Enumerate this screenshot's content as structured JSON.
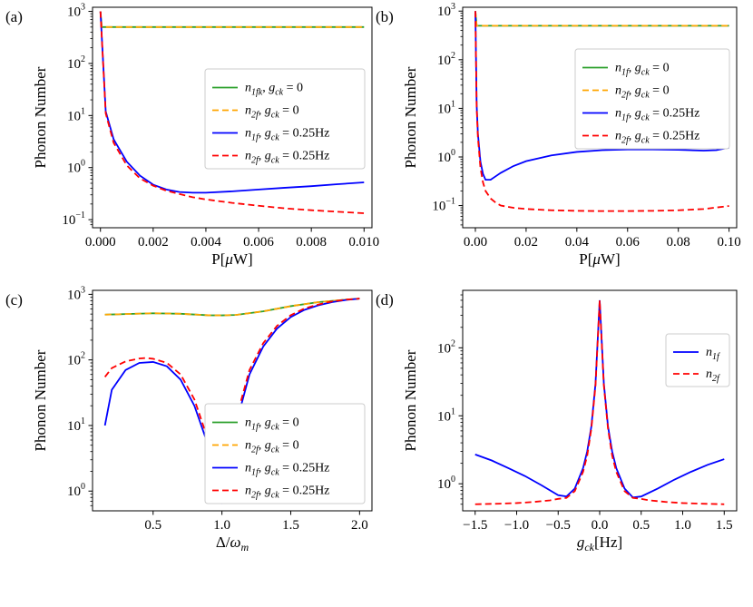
{
  "chart_data": [
    {
      "type": "line",
      "panel_label": "(a)",
      "xlabel": "P[μW]",
      "ylabel": "Phonon Number",
      "xscale": "linear",
      "yscale": "log",
      "xlim": [
        -0.0003,
        0.0103
      ],
      "ylim": [
        0.07,
        1200
      ],
      "xticks": [
        0.0,
        0.002,
        0.004,
        0.006,
        0.008,
        0.01
      ],
      "xtick_labels": [
        "0.000",
        "0.002",
        "0.004",
        "0.006",
        "0.008",
        "0.010"
      ],
      "yticks": [
        0.1,
        1,
        10,
        100,
        1000
      ],
      "ytick_labels": [
        [
          "10",
          "−1"
        ],
        [
          "10",
          "0"
        ],
        [
          "10",
          "1"
        ],
        [
          "10",
          "2"
        ],
        [
          "10",
          "3"
        ]
      ],
      "legend_position": "center-right",
      "series": [
        {
          "label": [
            "n",
            "1fk",
            ", g",
            "ck",
            " = 0"
          ],
          "color": "#2ca02c",
          "dash": "",
          "x": [
            0.0,
            5e-05,
            0.01
          ],
          "y": [
            1000,
            500,
            500
          ]
        },
        {
          "label": [
            "n",
            "2f",
            ", g",
            "ck",
            " = 0"
          ],
          "color": "#ffa500",
          "dash": "7 4",
          "x": [
            0.0,
            5e-05,
            0.01
          ],
          "y": [
            1000,
            500,
            500
          ]
        },
        {
          "label": [
            "n",
            "1f",
            ", g",
            "ck",
            " = 0.25Hz"
          ],
          "color": "#0000ff",
          "dash": "",
          "x": [
            0.0,
            0.0002,
            0.0005,
            0.001,
            0.0015,
            0.002,
            0.0025,
            0.003,
            0.0035,
            0.004,
            0.005,
            0.006,
            0.007,
            0.008,
            0.009,
            0.01
          ],
          "y": [
            1000,
            12,
            3.5,
            1.3,
            0.7,
            0.47,
            0.38,
            0.34,
            0.33,
            0.33,
            0.35,
            0.38,
            0.41,
            0.44,
            0.48,
            0.52
          ]
        },
        {
          "label": [
            "n",
            "2f",
            ", g",
            "ck",
            " = 0.25Hz"
          ],
          "color": "#ff0000",
          "dash": "7 4",
          "x": [
            0.0,
            0.0002,
            0.0005,
            0.001,
            0.0015,
            0.002,
            0.0025,
            0.003,
            0.0035,
            0.004,
            0.005,
            0.006,
            0.007,
            0.008,
            0.009,
            0.01
          ],
          "y": [
            1000,
            11,
            3.0,
            1.1,
            0.62,
            0.45,
            0.36,
            0.31,
            0.27,
            0.245,
            0.21,
            0.185,
            0.165,
            0.152,
            0.142,
            0.133
          ]
        }
      ]
    },
    {
      "type": "line",
      "panel_label": "(b)",
      "xlabel": "P[μW]",
      "ylabel": "Phonon Number",
      "xscale": "linear",
      "yscale": "log",
      "xlim": [
        -0.005,
        0.103
      ],
      "ylim": [
        0.035,
        1200
      ],
      "xticks": [
        0.0,
        0.02,
        0.04,
        0.06,
        0.08,
        0.1
      ],
      "xtick_labels": [
        "0.00",
        "0.02",
        "0.04",
        "0.06",
        "0.08",
        "0.10"
      ],
      "yticks": [
        0.1,
        1,
        10,
        100,
        1000
      ],
      "ytick_labels": [
        [
          "10",
          "−1"
        ],
        [
          "10",
          "0"
        ],
        [
          "10",
          "1"
        ],
        [
          "10",
          "2"
        ],
        [
          "10",
          "3"
        ]
      ],
      "legend_position": "upper-right",
      "series": [
        {
          "label": [
            "n",
            "1f",
            ", g",
            "ck",
            " = 0"
          ],
          "color": "#2ca02c",
          "dash": "",
          "x": [
            0.0,
            0.0005,
            0.1
          ],
          "y": [
            1000,
            500,
            500
          ]
        },
        {
          "label": [
            "n",
            "2f",
            ", g",
            "ck",
            " = 0"
          ],
          "color": "#ffa500",
          "dash": "7 4",
          "x": [
            0.0,
            0.0005,
            0.1
          ],
          "y": [
            1000,
            500,
            500
          ]
        },
        {
          "label": [
            "n",
            "1f",
            ", g",
            "ck",
            " = 0.25Hz"
          ],
          "color": "#0000ff",
          "dash": "",
          "x": [
            0.0,
            0.0005,
            0.001,
            0.002,
            0.003,
            0.004,
            0.006,
            0.008,
            0.01,
            0.015,
            0.02,
            0.03,
            0.04,
            0.05,
            0.06,
            0.07,
            0.08,
            0.09,
            0.095,
            0.1
          ],
          "y": [
            1000,
            12,
            3.0,
            0.8,
            0.45,
            0.34,
            0.34,
            0.4,
            0.47,
            0.65,
            0.82,
            1.08,
            1.27,
            1.38,
            1.43,
            1.43,
            1.4,
            1.35,
            1.38,
            1.55
          ]
        },
        {
          "label": [
            "n",
            "2f",
            ", g",
            "ck",
            " = 0.25Hz"
          ],
          "color": "#ff0000",
          "dash": "7 4",
          "x": [
            0.0,
            0.0005,
            0.001,
            0.002,
            0.003,
            0.004,
            0.006,
            0.008,
            0.01,
            0.015,
            0.02,
            0.03,
            0.04,
            0.05,
            0.06,
            0.07,
            0.08,
            0.09,
            0.1
          ],
          "y": [
            1000,
            11,
            2.5,
            0.6,
            0.3,
            0.2,
            0.14,
            0.115,
            0.1,
            0.09,
            0.085,
            0.08,
            0.078,
            0.077,
            0.077,
            0.078,
            0.08,
            0.085,
            0.098
          ]
        }
      ]
    },
    {
      "type": "line",
      "panel_label": "(c)",
      "xlabel": "Δ/ω_m",
      "ylabel": "Phonon Number",
      "xscale": "linear",
      "yscale": "log",
      "xlim": [
        0.06,
        2.09
      ],
      "ylim": [
        0.5,
        1150
      ],
      "xticks": [
        0.5,
        1.0,
        1.5,
        2.0
      ],
      "xtick_labels": [
        "0.5",
        "1.0",
        "1.5",
        "2.0"
      ],
      "yticks": [
        1,
        10,
        100,
        1000
      ],
      "ytick_labels": [
        [
          "10",
          "0"
        ],
        [
          "10",
          "1"
        ],
        [
          "10",
          "2"
        ],
        [
          "10",
          "3"
        ]
      ],
      "legend_position": "lower-right",
      "series": [
        {
          "label": [
            "n",
            "1f",
            ", g",
            "ck",
            " = 0"
          ],
          "color": "#2ca02c",
          "dash": "",
          "x": [
            0.15,
            0.3,
            0.5,
            0.7,
            0.9,
            1.0,
            1.1,
            1.3,
            1.5,
            1.7,
            1.9,
            2.0
          ],
          "y": [
            490,
            500,
            515,
            505,
            480,
            478,
            485,
            550,
            660,
            760,
            830,
            860
          ]
        },
        {
          "label": [
            "n",
            "2f",
            ", g",
            "ck",
            " = 0"
          ],
          "color": "#ffa500",
          "dash": "7 4",
          "x": [
            0.15,
            0.3,
            0.5,
            0.7,
            0.9,
            1.0,
            1.1,
            1.3,
            1.5,
            1.7,
            1.9,
            2.0
          ],
          "y": [
            490,
            500,
            515,
            505,
            480,
            478,
            485,
            550,
            660,
            760,
            830,
            860
          ]
        },
        {
          "label": [
            "n",
            "1f",
            ", g",
            "ck",
            " = 0.25Hz"
          ],
          "color": "#0000ff",
          "dash": "",
          "x": [
            0.15,
            0.2,
            0.3,
            0.4,
            0.5,
            0.6,
            0.7,
            0.8,
            0.9,
            0.95,
            0.98,
            1.0,
            1.02,
            1.05,
            1.1,
            1.2,
            1.3,
            1.4,
            1.5,
            1.6,
            1.7,
            1.8,
            1.9,
            2.0
          ],
          "y": [
            10,
            35,
            70,
            90,
            93,
            80,
            50,
            20,
            5,
            2.0,
            1.0,
            0.7,
            1.0,
            2.5,
            10,
            60,
            160,
            300,
            450,
            580,
            680,
            760,
            820,
            860
          ]
        },
        {
          "label": [
            "n",
            "2f",
            ", g",
            "ck",
            " = 0.25Hz"
          ],
          "color": "#ff0000",
          "dash": "7 4",
          "x": [
            0.15,
            0.2,
            0.3,
            0.4,
            0.45,
            0.5,
            0.6,
            0.7,
            0.8,
            0.9,
            0.95,
            0.98,
            1.0,
            1.02,
            1.05,
            1.1,
            1.2,
            1.3,
            1.4,
            1.5,
            1.6,
            1.7,
            1.8,
            1.9,
            2.0
          ],
          "y": [
            55,
            75,
            95,
            105,
            107,
            104,
            90,
            60,
            25,
            6,
            2.2,
            1.1,
            0.75,
            1.1,
            2.8,
            12,
            70,
            180,
            330,
            480,
            610,
            700,
            780,
            830,
            860
          ]
        }
      ]
    },
    {
      "type": "line",
      "panel_label": "(d)",
      "xlabel": "g_ck[Hz]",
      "ylabel": "Phonon Number",
      "xscale": "linear",
      "yscale": "log",
      "xlim": [
        -1.65,
        1.65
      ],
      "ylim": [
        0.4,
        700
      ],
      "xticks": [
        -1.5,
        -1.0,
        -0.5,
        0.0,
        0.5,
        1.0,
        1.5
      ],
      "xtick_labels": [
        "−1.5",
        "−1.0",
        "−0.5",
        "0.0",
        "0.5",
        "1.0",
        "1.5"
      ],
      "yticks": [
        1,
        10,
        100
      ],
      "ytick_labels": [
        [
          "10",
          "0"
        ],
        [
          "10",
          "1"
        ],
        [
          "10",
          "2"
        ]
      ],
      "legend_position": "upper-right",
      "series": [
        {
          "label": [
            "n",
            "1f",
            "",
            "",
            ""
          ],
          "color": "#0000ff",
          "dash": "",
          "x": [
            -1.5,
            -1.3,
            -1.1,
            -0.9,
            -0.7,
            -0.5,
            -0.4,
            -0.3,
            -0.2,
            -0.15,
            -0.1,
            -0.05,
            0.0,
            0.05,
            0.1,
            0.15,
            0.2,
            0.3,
            0.4,
            0.5,
            0.7,
            0.9,
            1.1,
            1.3,
            1.5
          ],
          "y": [
            2.7,
            2.2,
            1.7,
            1.3,
            0.95,
            0.68,
            0.65,
            0.85,
            1.7,
            3.0,
            7,
            30,
            500,
            30,
            7,
            3.0,
            1.7,
            0.85,
            0.63,
            0.65,
            0.85,
            1.15,
            1.5,
            1.9,
            2.3
          ]
        },
        {
          "label": [
            "n",
            "2f",
            "",
            "",
            ""
          ],
          "color": "#ff0000",
          "dash": "7 4",
          "x": [
            -1.5,
            -1.2,
            -1.0,
            -0.8,
            -0.6,
            -0.5,
            -0.4,
            -0.3,
            -0.2,
            -0.15,
            -0.1,
            -0.05,
            0.0,
            0.05,
            0.1,
            0.15,
            0.2,
            0.3,
            0.4,
            0.5,
            0.6,
            0.8,
            1.0,
            1.2,
            1.5
          ],
          "y": [
            0.5,
            0.51,
            0.52,
            0.54,
            0.57,
            0.6,
            0.62,
            0.78,
            1.5,
            2.6,
            6.5,
            28,
            500,
            28,
            6.5,
            2.6,
            1.5,
            0.78,
            0.62,
            0.6,
            0.57,
            0.54,
            0.52,
            0.51,
            0.5
          ]
        }
      ]
    }
  ]
}
